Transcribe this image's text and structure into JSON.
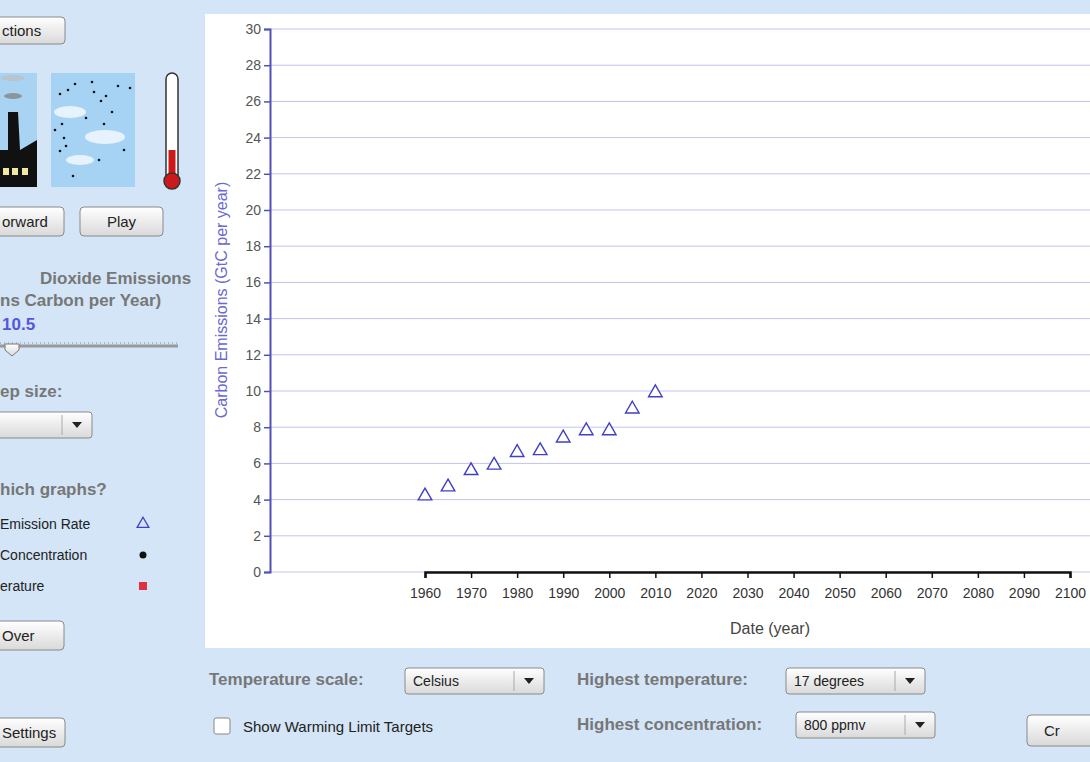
{
  "ui": {
    "options_button": "ctions",
    "forward_button": "orward",
    "play_button": "Play",
    "emissions_title": [
      "Dioxide Emissions",
      "ns Carbon per Year)"
    ],
    "emissions_value": 10.5,
    "step_size_label": "ep size:",
    "graphs_label": "hich graphs?",
    "graph_options": [
      "Emission Rate",
      "Concentration",
      "erature"
    ],
    "start_over_button": "Over",
    "settings_button": "Settings",
    "temperature_scale_label": "Temperature scale:",
    "temperature_scale_value": "Celsius",
    "highest_temperature_label": "Highest temperature:",
    "highest_temperature_value": "17 degrees",
    "warming_limit_label": "Show Warming Limit Targets",
    "highest_concentration_label": "Highest concentration:",
    "highest_concentration_value": "800 ppmv",
    "create_button": "Cr"
  },
  "chart_data": {
    "type": "scatter",
    "x_label": "Date (year)",
    "y_label": "Carbon Emissions (GtC per year)",
    "x": [
      1960,
      1965,
      1970,
      1975,
      1980,
      1985,
      1990,
      1995,
      2000,
      2005,
      2010
    ],
    "values": [
      4.2,
      4.7,
      5.6,
      5.9,
      6.6,
      6.7,
      7.4,
      7.8,
      7.8,
      9.0,
      9.9
    ],
    "color": "#3f3fc8",
    "marker": "triangle",
    "xlim": [
      1960,
      2100
    ],
    "xticks": [
      1960,
      1970,
      1980,
      1990,
      2000,
      2010,
      2020,
      2030,
      2040,
      2050,
      2060,
      2070,
      2080,
      2090,
      2100
    ],
    "ylim": [
      0,
      30
    ],
    "yticks": [
      0,
      2,
      4,
      6,
      8,
      10,
      12,
      14,
      16,
      18,
      20,
      22,
      24,
      26,
      28,
      30
    ],
    "grid": true
  }
}
